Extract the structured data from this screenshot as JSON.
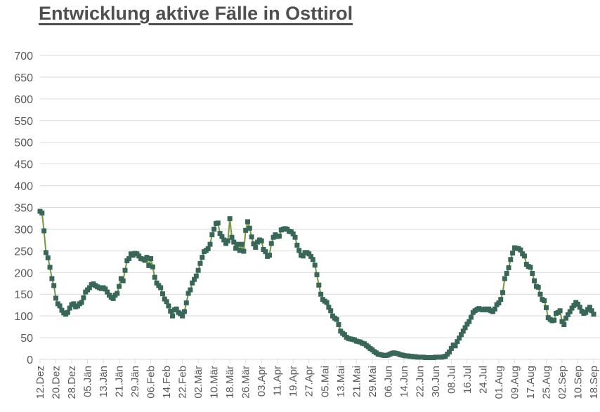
{
  "title": {
    "text": "Entwicklung aktive Fälle in Osttirol"
  },
  "chart_data": {
    "type": "line",
    "title": "Entwicklung aktive Fälle in Osttirol",
    "series_name": "aktive Fälle",
    "x_tick_labels": [
      "12.Dez",
      "20.Dez",
      "28.Dez",
      "05.Jän",
      "13.Jän",
      "21.Jän",
      "29.Jän",
      "06.Feb",
      "14.Feb",
      "22.Feb",
      "02.Mär",
      "10.Mär",
      "18.Mär",
      "26.Mär",
      "03.Apr",
      "11.Apr",
      "19.Apr",
      "27.Apr",
      "05.Mai",
      "13.Mai",
      "21.Mai",
      "29.Mai",
      "06.Jun",
      "14.Jun",
      "22.Jun",
      "30.Jun",
      "08.Jul",
      "16.Jul",
      "24.Jul",
      "01.Aug",
      "09.Aug",
      "17.Aug",
      "25.Aug",
      "02.Sep",
      "10.Sep",
      "18.Sep"
    ],
    "x_tick_interval_days": 8,
    "values": [
      341,
      337,
      296,
      246,
      234,
      212,
      186,
      170,
      141,
      128,
      123,
      113,
      107,
      104,
      108,
      118,
      126,
      128,
      121,
      123,
      128,
      131,
      142,
      155,
      160,
      165,
      172,
      174,
      170,
      167,
      165,
      163,
      165,
      162,
      155,
      148,
      143,
      140,
      148,
      152,
      168,
      186,
      181,
      205,
      227,
      232,
      243,
      240,
      244,
      243,
      238,
      232,
      231,
      228,
      235,
      216,
      232,
      213,
      189,
      176,
      170,
      165,
      151,
      139,
      133,
      123,
      111,
      100,
      114,
      116,
      108,
      105,
      100,
      110,
      130,
      152,
      160,
      176,
      184,
      192,
      205,
      221,
      235,
      248,
      251,
      255,
      265,
      287,
      300,
      313,
      314,
      290,
      283,
      275,
      267,
      273,
      324,
      281,
      270,
      256,
      265,
      251,
      265,
      249,
      297,
      317,
      302,
      282,
      266,
      258,
      270,
      275,
      273,
      253,
      248,
      237,
      240,
      267,
      281,
      287,
      283,
      284,
      298,
      300,
      301,
      300,
      295,
      294,
      289,
      281,
      263,
      251,
      240,
      238,
      246,
      246,
      243,
      237,
      230,
      217,
      195,
      171,
      150,
      138,
      134,
      131,
      120,
      112,
      100,
      95,
      92,
      80,
      65,
      60,
      57,
      51,
      48,
      47,
      46,
      45,
      42,
      41,
      40,
      37,
      36,
      32,
      29,
      25,
      22,
      18,
      15,
      12,
      11,
      10,
      9,
      9,
      10,
      12,
      14,
      15,
      14,
      13,
      11,
      10,
      9,
      8,
      8,
      7,
      7,
      6,
      6,
      5,
      5,
      5,
      5,
      4,
      4,
      4,
      4,
      4,
      5,
      5,
      5,
      5,
      6,
      7,
      12,
      17,
      25,
      33,
      31,
      41,
      49,
      57,
      65,
      73,
      81,
      87,
      97,
      108,
      112,
      115,
      117,
      115,
      114,
      116,
      114,
      116,
      112,
      110,
      116,
      126,
      130,
      138,
      154,
      186,
      198,
      211,
      230,
      245,
      257,
      256,
      255,
      252,
      243,
      238,
      219,
      214,
      212,
      198,
      181,
      168,
      166,
      150,
      138,
      135,
      119,
      96,
      92,
      89,
      90,
      106,
      108,
      112,
      87,
      80,
      95,
      103,
      110,
      118,
      124,
      131,
      127,
      120,
      111,
      106,
      108,
      115,
      120,
      112,
      104
    ],
    "ylim": [
      0,
      700
    ],
    "ytick_step": 50,
    "grid": true,
    "legend": "none",
    "colors": {
      "line": "#78993c",
      "marker": "#386759",
      "gridline": "#d9d9d9",
      "axis_text": "#595959",
      "title_text": "#4f4f4f"
    }
  }
}
